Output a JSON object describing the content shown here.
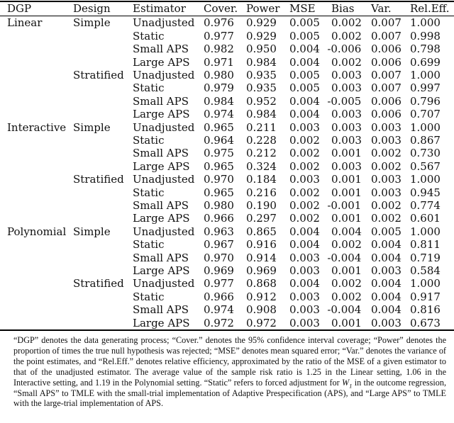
{
  "table": {
    "columns": [
      "DGP",
      "Design",
      "Estimator",
      "Cover.",
      "Power",
      "MSE",
      "Bias",
      "Var.",
      "Rel.Eff."
    ],
    "rows": [
      {
        "dgp": "Linear",
        "design": "Simple",
        "estimator": "Unadjusted",
        "cover": "0.976",
        "power": "0.929",
        "mse": "0.005",
        "bias": "0.002",
        "var": "0.007",
        "releff": "1.000"
      },
      {
        "dgp": "",
        "design": "",
        "estimator": "Static",
        "cover": "0.977",
        "power": "0.929",
        "mse": "0.005",
        "bias": "0.002",
        "var": "0.007",
        "releff": "0.998"
      },
      {
        "dgp": "",
        "design": "",
        "estimator": "Small APS",
        "cover": "0.982",
        "power": "0.950",
        "mse": "0.004",
        "bias": "-0.006",
        "var": "0.006",
        "releff": "0.798"
      },
      {
        "dgp": "",
        "design": "",
        "estimator": "Large APS",
        "cover": "0.971",
        "power": "0.984",
        "mse": "0.004",
        "bias": "0.002",
        "var": "0.006",
        "releff": "0.699"
      },
      {
        "dgp": "",
        "design": "Stratified",
        "estimator": "Unadjusted",
        "cover": "0.980",
        "power": "0.935",
        "mse": "0.005",
        "bias": "0.003",
        "var": "0.007",
        "releff": "1.000"
      },
      {
        "dgp": "",
        "design": "",
        "estimator": "Static",
        "cover": "0.979",
        "power": "0.935",
        "mse": "0.005",
        "bias": "0.003",
        "var": "0.007",
        "releff": "0.997"
      },
      {
        "dgp": "",
        "design": "",
        "estimator": "Small APS",
        "cover": "0.984",
        "power": "0.952",
        "mse": "0.004",
        "bias": "-0.005",
        "var": "0.006",
        "releff": "0.796"
      },
      {
        "dgp": "",
        "design": "",
        "estimator": "Large APS",
        "cover": "0.974",
        "power": "0.984",
        "mse": "0.004",
        "bias": "0.003",
        "var": "0.006",
        "releff": "0.707"
      },
      {
        "dgp": "Interactive",
        "design": "Simple",
        "estimator": "Unadjusted",
        "cover": "0.965",
        "power": "0.211",
        "mse": "0.003",
        "bias": "0.003",
        "var": "0.003",
        "releff": "1.000"
      },
      {
        "dgp": "",
        "design": "",
        "estimator": "Static",
        "cover": "0.964",
        "power": "0.228",
        "mse": "0.002",
        "bias": "0.003",
        "var": "0.003",
        "releff": "0.867"
      },
      {
        "dgp": "",
        "design": "",
        "estimator": "Small APS",
        "cover": "0.975",
        "power": "0.212",
        "mse": "0.002",
        "bias": "0.001",
        "var": "0.002",
        "releff": "0.730"
      },
      {
        "dgp": "",
        "design": "",
        "estimator": "Large APS",
        "cover": "0.965",
        "power": "0.324",
        "mse": "0.002",
        "bias": "0.003",
        "var": "0.002",
        "releff": "0.567"
      },
      {
        "dgp": "",
        "design": "Stratified",
        "estimator": "Unadjusted",
        "cover": "0.970",
        "power": "0.184",
        "mse": "0.003",
        "bias": "0.001",
        "var": "0.003",
        "releff": "1.000"
      },
      {
        "dgp": "",
        "design": "",
        "estimator": "Static",
        "cover": "0.965",
        "power": "0.216",
        "mse": "0.002",
        "bias": "0.001",
        "var": "0.003",
        "releff": "0.945"
      },
      {
        "dgp": "",
        "design": "",
        "estimator": "Small APS",
        "cover": "0.980",
        "power": "0.190",
        "mse": "0.002",
        "bias": "-0.001",
        "var": "0.002",
        "releff": "0.774"
      },
      {
        "dgp": "",
        "design": "",
        "estimator": "Large APS",
        "cover": "0.966",
        "power": "0.297",
        "mse": "0.002",
        "bias": "0.001",
        "var": "0.002",
        "releff": "0.601"
      },
      {
        "dgp": "Polynomial",
        "design": "Simple",
        "estimator": "Unadjusted",
        "cover": "0.963",
        "power": "0.865",
        "mse": "0.004",
        "bias": "0.004",
        "var": "0.005",
        "releff": "1.000"
      },
      {
        "dgp": "",
        "design": "",
        "estimator": "Static",
        "cover": "0.967",
        "power": "0.916",
        "mse": "0.004",
        "bias": "0.002",
        "var": "0.004",
        "releff": "0.811"
      },
      {
        "dgp": "",
        "design": "",
        "estimator": "Small APS",
        "cover": "0.970",
        "power": "0.914",
        "mse": "0.003",
        "bias": "-0.004",
        "var": "0.004",
        "releff": "0.719"
      },
      {
        "dgp": "",
        "design": "",
        "estimator": "Large APS",
        "cover": "0.969",
        "power": "0.969",
        "mse": "0.003",
        "bias": "0.001",
        "var": "0.003",
        "releff": "0.584"
      },
      {
        "dgp": "",
        "design": "Stratified",
        "estimator": "Unadjusted",
        "cover": "0.977",
        "power": "0.868",
        "mse": "0.004",
        "bias": "0.002",
        "var": "0.004",
        "releff": "1.000"
      },
      {
        "dgp": "",
        "design": "",
        "estimator": "Static",
        "cover": "0.966",
        "power": "0.912",
        "mse": "0.003",
        "bias": "0.002",
        "var": "0.004",
        "releff": "0.917"
      },
      {
        "dgp": "",
        "design": "",
        "estimator": "Small APS",
        "cover": "0.974",
        "power": "0.908",
        "mse": "0.003",
        "bias": "-0.004",
        "var": "0.004",
        "releff": "0.816"
      },
      {
        "dgp": "",
        "design": "",
        "estimator": "Large APS",
        "cover": "0.972",
        "power": "0.972",
        "mse": "0.003",
        "bias": "0.001",
        "var": "0.003",
        "releff": "0.673"
      }
    ]
  },
  "footnote": {
    "part1": "“DGP” denotes the data generating process; “Cover.”  denotes the 95% confidence interval coverage; “Power” denotes the proportion of times the true null hypothesis was rejected; “MSE” denotes mean squared error; “Var.”  denotes the variance of the point estimates, and “Rel.Eff.”  denotes relative efficiency, approximated by the ratio of the MSE of a given estimator to that of the unadjusted estimator. The average value of the sample risk ratio is 1.25 in the Linear setting, 1.06 in the Interactive setting, and 1.19 in the Polynomial setting.  “Static” refers to forced adjustment for ",
    "math_var": "W",
    "math_sub": "1",
    "part2": " in the outcome regression, “Small APS” to TMLE with the small-trial implementation of Adaptive Prespecification (APS), and “Large APS” to TMLE with the large-trial implementation of APS."
  }
}
